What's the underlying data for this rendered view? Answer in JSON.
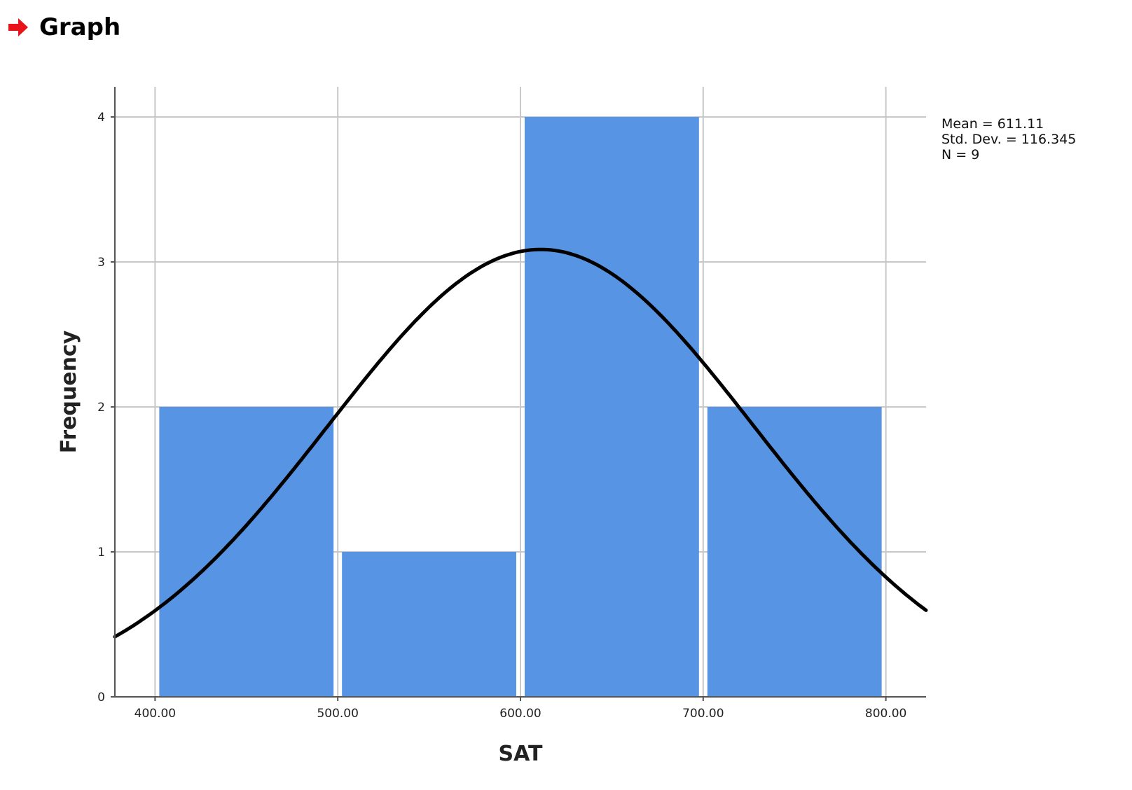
{
  "header": {
    "title": "Graph",
    "icon": "red-arrow-icon",
    "icon_color": "#e8141a"
  },
  "chart_data": {
    "type": "bar",
    "subtype": "histogram-with-normal-curve",
    "bins": [
      {
        "start": 400,
        "end": 500,
        "count": 2
      },
      {
        "start": 500,
        "end": 600,
        "count": 1
      },
      {
        "start": 600,
        "end": 700,
        "count": 4
      },
      {
        "start": 700,
        "end": 800,
        "count": 2
      }
    ],
    "values": [
      2,
      1,
      4,
      2
    ],
    "xlabel": "SAT",
    "ylabel": "Frequency",
    "xlim": [
      378,
      822
    ],
    "ylim": [
      0,
      4.2
    ],
    "xticks": [
      400,
      500,
      600,
      700,
      800
    ],
    "xtick_labels": [
      "400.00",
      "500.00",
      "600.00",
      "700.00",
      "800.00"
    ],
    "yticks": [
      0,
      1,
      2,
      3,
      4
    ],
    "ytick_labels": [
      "0",
      "1",
      "2",
      "3",
      "4"
    ],
    "grid": true,
    "normal_curve": {
      "mean": 611.11,
      "sd": 116.345,
      "n": 9,
      "bin_width": 100
    },
    "stats": [
      "Mean = 611.11",
      "Std. Dev. = 116.345",
      "N = 9"
    ],
    "bar_color": "#5794e3",
    "grid_color": "#c8c8c8",
    "curve_color": "#000000"
  }
}
